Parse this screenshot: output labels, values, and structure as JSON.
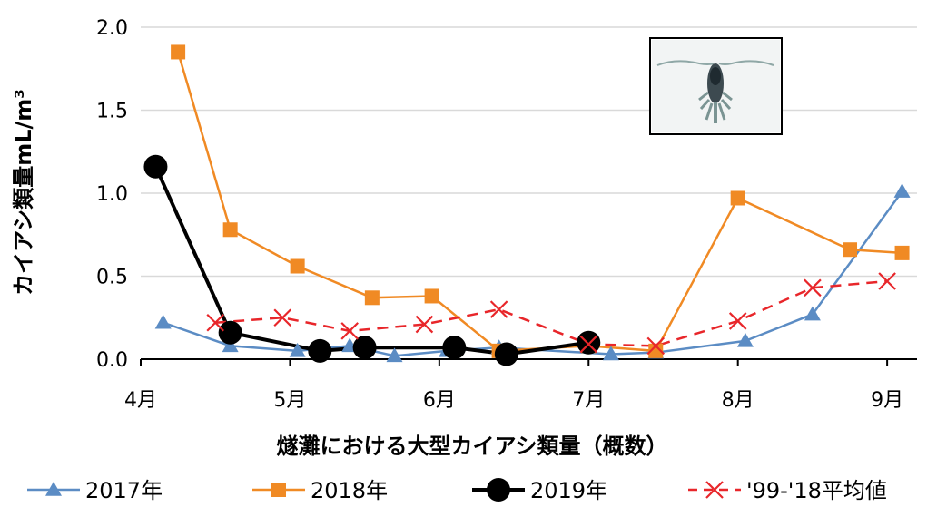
{
  "chart_data": {
    "type": "line",
    "xlabel": "燧灘における大型カイアシ類量（概数）",
    "ylabel": "カイアシ類量mL/m³",
    "ylim": [
      0,
      2.0
    ],
    "yticks": [
      "0.0",
      "0.5",
      "1.0",
      "1.5",
      "2.0"
    ],
    "xlim": [
      4,
      9.2
    ],
    "xticks": [
      {
        "value": 4,
        "label": "4月"
      },
      {
        "value": 5,
        "label": "5月"
      },
      {
        "value": 6,
        "label": "6月"
      },
      {
        "value": 7,
        "label": "7月"
      },
      {
        "value": 8,
        "label": "8月"
      },
      {
        "value": 9,
        "label": "9月"
      }
    ],
    "grid": "horizontal",
    "legend_position": "bottom",
    "series": [
      {
        "name": "2017年",
        "color": "#5b8cc4",
        "marker": "triangle",
        "dash": "solid",
        "x": [
          4.15,
          4.6,
          5.05,
          5.4,
          5.7,
          6.05,
          6.4,
          7.15,
          7.45,
          8.05,
          8.5,
          9.1
        ],
        "y": [
          0.22,
          0.08,
          0.05,
          0.08,
          0.02,
          0.05,
          0.07,
          0.03,
          0.04,
          0.11,
          0.27,
          1.01
        ]
      },
      {
        "name": "2018年",
        "color": "#f08a24",
        "marker": "square",
        "dash": "solid",
        "x": [
          4.25,
          4.6,
          5.05,
          5.55,
          5.95,
          6.4,
          7.0,
          7.45,
          8.0,
          8.75,
          9.1
        ],
        "y": [
          1.85,
          0.78,
          0.56,
          0.37,
          0.38,
          0.05,
          0.08,
          0.05,
          0.97,
          0.66,
          0.64
        ]
      },
      {
        "name": "2019年",
        "color": "#000000",
        "marker": "circle",
        "dash": "solid",
        "x": [
          4.1,
          4.6,
          5.2,
          5.5,
          6.1,
          6.45,
          7.0
        ],
        "y": [
          1.16,
          0.16,
          0.05,
          0.07,
          0.07,
          0.03,
          0.1
        ]
      },
      {
        "name": "'99-'18平均値",
        "color": "#e8262a",
        "marker": "x",
        "dash": "dashed",
        "x": [
          4.5,
          4.95,
          5.4,
          5.9,
          6.4,
          7.0,
          7.45,
          8.0,
          8.5,
          9.0
        ],
        "y": [
          0.22,
          0.25,
          0.17,
          0.21,
          0.3,
          0.09,
          0.08,
          0.23,
          0.43,
          0.47
        ]
      }
    ]
  },
  "inset": {
    "icon": "copepod-photo"
  }
}
